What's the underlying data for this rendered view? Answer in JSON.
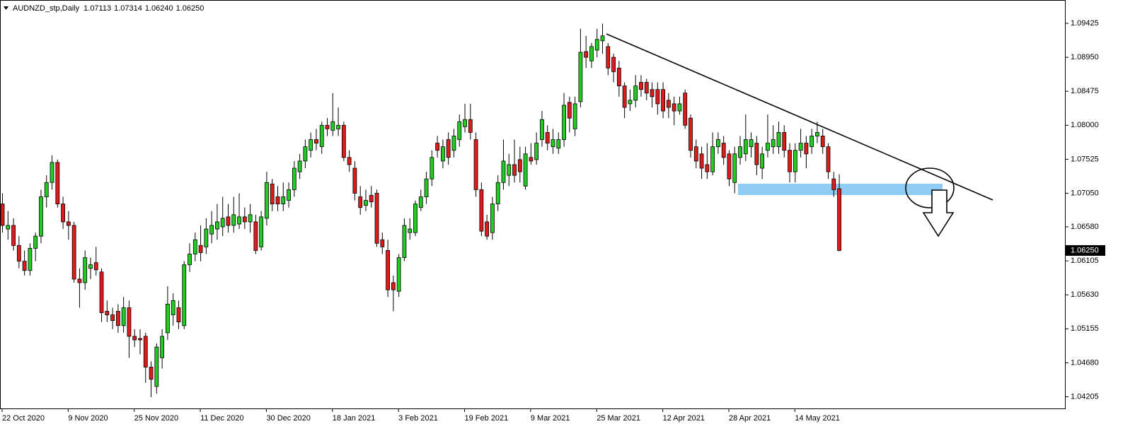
{
  "chart_data": {
    "type": "candlestick",
    "title": "AUDNZD_stp,Daily",
    "title_values": [
      "1.07113",
      "1.07314",
      "1.06240",
      "1.06250"
    ],
    "up_color": "#22cc22",
    "down_color": "#e01b1b",
    "ylim": [
      1.04042,
      1.09751
    ],
    "yticks": [
      1.09425,
      {
        "value": 1.0895,
        "label": "1.08950"
      },
      1.08475,
      {
        "value": 1.08,
        "label": "1.08000"
      },
      1.07525,
      {
        "value": 1.0705,
        "label": "1.07050"
      },
      {
        "value": 1.0658,
        "label": "1.06580"
      },
      1.06105,
      {
        "value": 1.0563,
        "label": "1.05630"
      },
      1.05155,
      {
        "value": 1.0468,
        "label": "1.04680"
      },
      1.04205
    ],
    "last_price": {
      "value": 1.0625,
      "label": "1.06250"
    },
    "categories": [
      "22 Oct 2020",
      null,
      null,
      null,
      null,
      null,
      null,
      null,
      null,
      null,
      null,
      null,
      "9 Nov 2020",
      null,
      null,
      null,
      null,
      null,
      null,
      null,
      null,
      null,
      null,
      null,
      "25 Nov 2020",
      null,
      null,
      null,
      null,
      null,
      null,
      null,
      null,
      null,
      null,
      null,
      "11 Dec 2020",
      null,
      null,
      null,
      null,
      null,
      null,
      null,
      null,
      null,
      null,
      null,
      "30 Dec 2020",
      null,
      null,
      null,
      null,
      null,
      null,
      null,
      null,
      null,
      null,
      null,
      "18 Jan 2021",
      null,
      null,
      null,
      null,
      null,
      null,
      null,
      null,
      null,
      null,
      null,
      "3 Feb 2021",
      null,
      null,
      null,
      null,
      null,
      null,
      null,
      null,
      null,
      null,
      null,
      "19 Feb 2021",
      null,
      null,
      null,
      null,
      null,
      null,
      null,
      null,
      null,
      null,
      null,
      "9 Mar 2021",
      null,
      null,
      null,
      null,
      null,
      null,
      null,
      null,
      null,
      null,
      null,
      "25 Mar 2021",
      null,
      null,
      null,
      null,
      null,
      null,
      null,
      null,
      null,
      null,
      null,
      "12 Apr 2021",
      null,
      null,
      null,
      null,
      null,
      null,
      null,
      null,
      null,
      null,
      null,
      "28 Apr 2021",
      null,
      null,
      null,
      null,
      null,
      null,
      null,
      null,
      null,
      null,
      null,
      "14 May 2021",
      null,
      null,
      null,
      null,
      null,
      null,
      null,
      null
    ],
    "ohlc": [
      [
        1.069,
        1.0705,
        1.065,
        1.066
      ],
      [
        1.0655,
        1.068,
        1.064,
        1.066
      ],
      [
        1.066,
        1.067,
        1.0625,
        1.0632
      ],
      [
        1.0632,
        1.0645,
        1.06,
        1.061
      ],
      [
        1.061,
        1.0625,
        1.059,
        1.0597
      ],
      [
        1.0597,
        1.0635,
        1.059,
        1.0628
      ],
      [
        1.0628,
        1.065,
        1.061,
        1.0645
      ],
      [
        1.0645,
        1.071,
        1.0635,
        1.07
      ],
      [
        1.07,
        1.073,
        1.0685,
        1.072
      ],
      [
        1.072,
        1.0758,
        1.071,
        1.0748
      ],
      [
        1.0748,
        1.0752,
        1.0685,
        1.069
      ],
      [
        1.069,
        1.07,
        1.0655,
        1.0665
      ],
      [
        1.0665,
        1.068,
        1.064,
        1.066
      ],
      [
        1.066,
        1.0665,
        1.058,
        1.0585
      ],
      [
        1.0585,
        1.06,
        1.0545,
        1.058
      ],
      [
        1.058,
        1.0625,
        1.057,
        1.0615
      ],
      [
        1.06,
        1.0615,
        1.0585,
        1.0605
      ],
      [
        1.0608,
        1.063,
        1.059,
        1.0598
      ],
      [
        1.0595,
        1.06,
        1.0525,
        1.0538
      ],
      [
        1.054,
        1.0555,
        1.0525,
        1.0535
      ],
      [
        1.0535,
        1.0545,
        1.0515,
        1.0527
      ],
      [
        1.054,
        1.055,
        1.051,
        1.052
      ],
      [
        1.052,
        1.056,
        1.051,
        1.0545
      ],
      [
        1.0545,
        1.0555,
        1.0475,
        1.0505
      ],
      [
        1.0505,
        1.0515,
        1.049,
        1.05
      ],
      [
        1.0502,
        1.0515,
        1.048,
        1.05
      ],
      [
        1.0505,
        1.051,
        1.044,
        1.0462
      ],
      [
        1.0462,
        1.047,
        1.042,
        1.0445
      ],
      [
        1.0435,
        1.0495,
        1.0425,
        1.049
      ],
      [
        1.0475,
        1.0515,
        1.046,
        1.0505
      ],
      [
        1.051,
        1.0575,
        1.05,
        1.055
      ],
      [
        1.0535,
        1.0565,
        1.052,
        1.0555
      ],
      [
        1.0545,
        1.0555,
        1.0515,
        1.0525
      ],
      [
        1.052,
        1.061,
        1.0515,
        1.0605
      ],
      [
        1.0605,
        1.0635,
        1.0595,
        1.062
      ],
      [
        1.062,
        1.065,
        1.061,
        1.064
      ],
      [
        1.0632,
        1.066,
        1.061,
        1.0622
      ],
      [
        1.063,
        1.067,
        1.062,
        1.0655
      ],
      [
        1.0648,
        1.068,
        1.0635,
        1.066
      ],
      [
        1.0655,
        1.069,
        1.064,
        1.0665
      ],
      [
        1.0658,
        1.07,
        1.0645,
        1.067
      ],
      [
        1.0672,
        1.069,
        1.065,
        1.066
      ],
      [
        1.066,
        1.07,
        1.065,
        1.0675
      ],
      [
        1.0662,
        1.0705,
        1.0655,
        1.0672
      ],
      [
        1.0672,
        1.0685,
        1.0655,
        1.0665
      ],
      [
        1.0665,
        1.069,
        1.065,
        1.0675
      ],
      [
        1.0665,
        1.0675,
        1.062,
        1.0625
      ],
      [
        1.063,
        1.068,
        1.0625,
        1.0672
      ],
      [
        1.067,
        1.0735,
        1.066,
        1.072
      ],
      [
        1.0718,
        1.0725,
        1.068,
        1.069
      ],
      [
        1.07,
        1.0715,
        1.068,
        1.069
      ],
      [
        1.069,
        1.072,
        1.068,
        1.07
      ],
      [
        1.0695,
        1.072,
        1.0685,
        1.071
      ],
      [
        1.071,
        1.075,
        1.07,
        1.074
      ],
      [
        1.0735,
        1.076,
        1.0725,
        1.075
      ],
      [
        1.075,
        1.078,
        1.074,
        1.077
      ],
      [
        1.0765,
        1.079,
        1.0755,
        1.078
      ],
      [
        1.078,
        1.0795,
        1.0765,
        1.0775
      ],
      [
        1.077,
        1.0805,
        1.076,
        1.08
      ],
      [
        1.08,
        1.081,
        1.0785,
        1.0795
      ],
      [
        1.0793,
        1.0845,
        1.0785,
        1.0805
      ],
      [
        1.0795,
        1.0825,
        1.0785,
        1.08
      ],
      [
        1.08,
        1.0805,
        1.075,
        1.0755
      ],
      [
        1.0755,
        1.0765,
        1.0735,
        1.0745
      ],
      [
        1.074,
        1.075,
        1.0695,
        1.0705
      ],
      [
        1.07,
        1.0715,
        1.0675,
        1.0685
      ],
      [
        1.0688,
        1.071,
        1.068,
        1.0695
      ],
      [
        1.0702,
        1.0715,
        1.0685,
        1.0693
      ],
      [
        1.0705,
        1.071,
        1.063,
        1.0635
      ],
      [
        1.064,
        1.065,
        1.062,
        1.063
      ],
      [
        1.0625,
        1.064,
        1.056,
        1.057
      ],
      [
        1.058,
        1.059,
        1.054,
        1.057
      ],
      [
        1.0568,
        1.062,
        1.056,
        1.0615
      ],
      [
        1.0615,
        1.067,
        1.061,
        1.066
      ],
      [
        1.065,
        1.067,
        1.064,
        1.0655
      ],
      [
        1.065,
        1.0695,
        1.0645,
        1.069
      ],
      [
        1.0685,
        1.071,
        1.068,
        1.07
      ],
      [
        1.07,
        1.0735,
        1.069,
        1.0725
      ],
      [
        1.0725,
        1.0765,
        1.0715,
        1.0755
      ],
      [
        1.0775,
        1.0785,
        1.0755,
        1.0765
      ],
      [
        1.075,
        1.078,
        1.074,
        1.077
      ],
      [
        1.078,
        1.079,
        1.0745,
        1.0755
      ],
      [
        1.0765,
        1.0795,
        1.0755,
        1.0785
      ],
      [
        1.078,
        1.0815,
        1.077,
        1.0805
      ],
      [
        1.0798,
        1.083,
        1.079,
        1.0808
      ],
      [
        1.0808,
        1.083,
        1.078,
        1.079
      ],
      [
        1.078,
        1.079,
        1.07,
        1.071
      ],
      [
        1.071,
        1.072,
        1.0645,
        1.0652
      ],
      [
        1.0665,
        1.0675,
        1.064,
        1.0645
      ],
      [
        1.065,
        1.07,
        1.064,
        1.069
      ],
      [
        1.069,
        1.073,
        1.068,
        1.072
      ],
      [
        1.072,
        1.078,
        1.071,
        1.075
      ],
      [
        1.073,
        1.076,
        1.0715,
        1.0745
      ],
      [
        1.0745,
        1.078,
        1.072,
        1.073
      ],
      [
        1.0752,
        1.077,
        1.072,
        1.0735
      ],
      [
        1.0715,
        1.077,
        1.071,
        1.076
      ],
      [
        1.0755,
        1.0775,
        1.0745,
        1.075
      ],
      [
        1.0752,
        1.079,
        1.0745,
        1.0775
      ],
      [
        1.078,
        1.082,
        1.077,
        1.0808
      ],
      [
        1.079,
        1.08,
        1.0765,
        1.0775
      ],
      [
        1.077,
        1.0795,
        1.076,
        1.078
      ],
      [
        1.0768,
        1.079,
        1.076,
        1.078
      ],
      [
        1.078,
        1.0845,
        1.077,
        1.0828
      ],
      [
        1.0832,
        1.084,
        1.079,
        1.081
      ],
      [
        1.0795,
        1.084,
        1.0785,
        1.083
      ],
      [
        1.0833,
        1.0935,
        1.0825,
        1.0902
      ],
      [
        1.0903,
        1.0925,
        1.088,
        1.0895
      ],
      [
        1.089,
        1.0915,
        1.088,
        1.091
      ],
      [
        1.0905,
        1.0935,
        1.0895,
        1.092
      ],
      [
        1.0918,
        1.0942,
        1.09,
        1.0925
      ],
      [
        1.091,
        1.0915,
        1.087,
        1.088
      ],
      [
        1.0895,
        1.09,
        1.086,
        1.0875
      ],
      [
        1.088,
        1.089,
        1.084,
        1.0855
      ],
      [
        1.0855,
        1.086,
        1.081,
        1.0825
      ],
      [
        1.083,
        1.085,
        1.082,
        1.0835
      ],
      [
        1.0835,
        1.087,
        1.0825,
        1.0855
      ],
      [
        1.086,
        1.087,
        1.084,
        1.085
      ],
      [
        1.086,
        1.0865,
        1.0835,
        1.0845
      ],
      [
        1.085,
        1.086,
        1.0825,
        1.084
      ],
      [
        1.085,
        1.086,
        1.0815,
        1.083
      ],
      [
        1.085,
        1.086,
        1.081,
        1.082
      ],
      [
        1.0835,
        1.0845,
        1.081,
        1.0825
      ],
      [
        1.083,
        1.084,
        1.08,
        1.082
      ],
      [
        1.082,
        1.084,
        1.0815,
        1.083
      ],
      [
        1.0845,
        1.085,
        1.0795,
        1.08
      ],
      [
        1.081,
        1.0815,
        1.0755,
        1.0765
      ],
      [
        1.077,
        1.078,
        1.074,
        1.075
      ],
      [
        1.076,
        1.077,
        1.0725,
        1.074
      ],
      [
        1.0745,
        1.0775,
        1.0725,
        1.0735
      ],
      [
        1.0735,
        1.079,
        1.073,
        1.077
      ],
      [
        1.077,
        1.079,
        1.076,
        1.078
      ],
      [
        1.0775,
        1.0785,
        1.0745,
        1.0755
      ],
      [
        1.076,
        1.0765,
        1.0715,
        1.0725
      ],
      [
        1.072,
        1.077,
        1.0705,
        1.076
      ],
      [
        1.0755,
        1.0785,
        1.0745,
        1.077
      ],
      [
        1.076,
        1.0815,
        1.075,
        1.078
      ],
      [
        1.077,
        1.079,
        1.0755,
        1.078
      ],
      [
        1.0775,
        1.0785,
        1.073,
        1.0745
      ],
      [
        1.074,
        1.077,
        1.0725,
        1.076
      ],
      [
        1.0765,
        1.0815,
        1.0755,
        1.0775
      ],
      [
        1.077,
        1.08,
        1.076,
        1.078
      ],
      [
        1.077,
        1.0805,
        1.076,
        1.079
      ],
      [
        1.079,
        1.08,
        1.0755,
        1.0765
      ],
      [
        1.0765,
        1.0775,
        1.072,
        1.0735
      ],
      [
        1.0735,
        1.0775,
        1.072,
        1.0765
      ],
      [
        1.0765,
        1.0795,
        1.0755,
        1.0775
      ],
      [
        1.0775,
        1.0785,
        1.074,
        1.076
      ],
      [
        1.077,
        1.0795,
        1.076,
        1.0785
      ],
      [
        1.0785,
        1.0805,
        1.0775,
        1.079
      ],
      [
        1.0785,
        1.0795,
        1.076,
        1.077
      ],
      [
        1.077,
        1.0775,
        1.0725,
        1.0735
      ],
      [
        1.0725,
        1.0735,
        1.07,
        1.071
      ],
      [
        1.07113,
        1.07314,
        1.0624,
        1.0625
      ]
    ]
  }
}
